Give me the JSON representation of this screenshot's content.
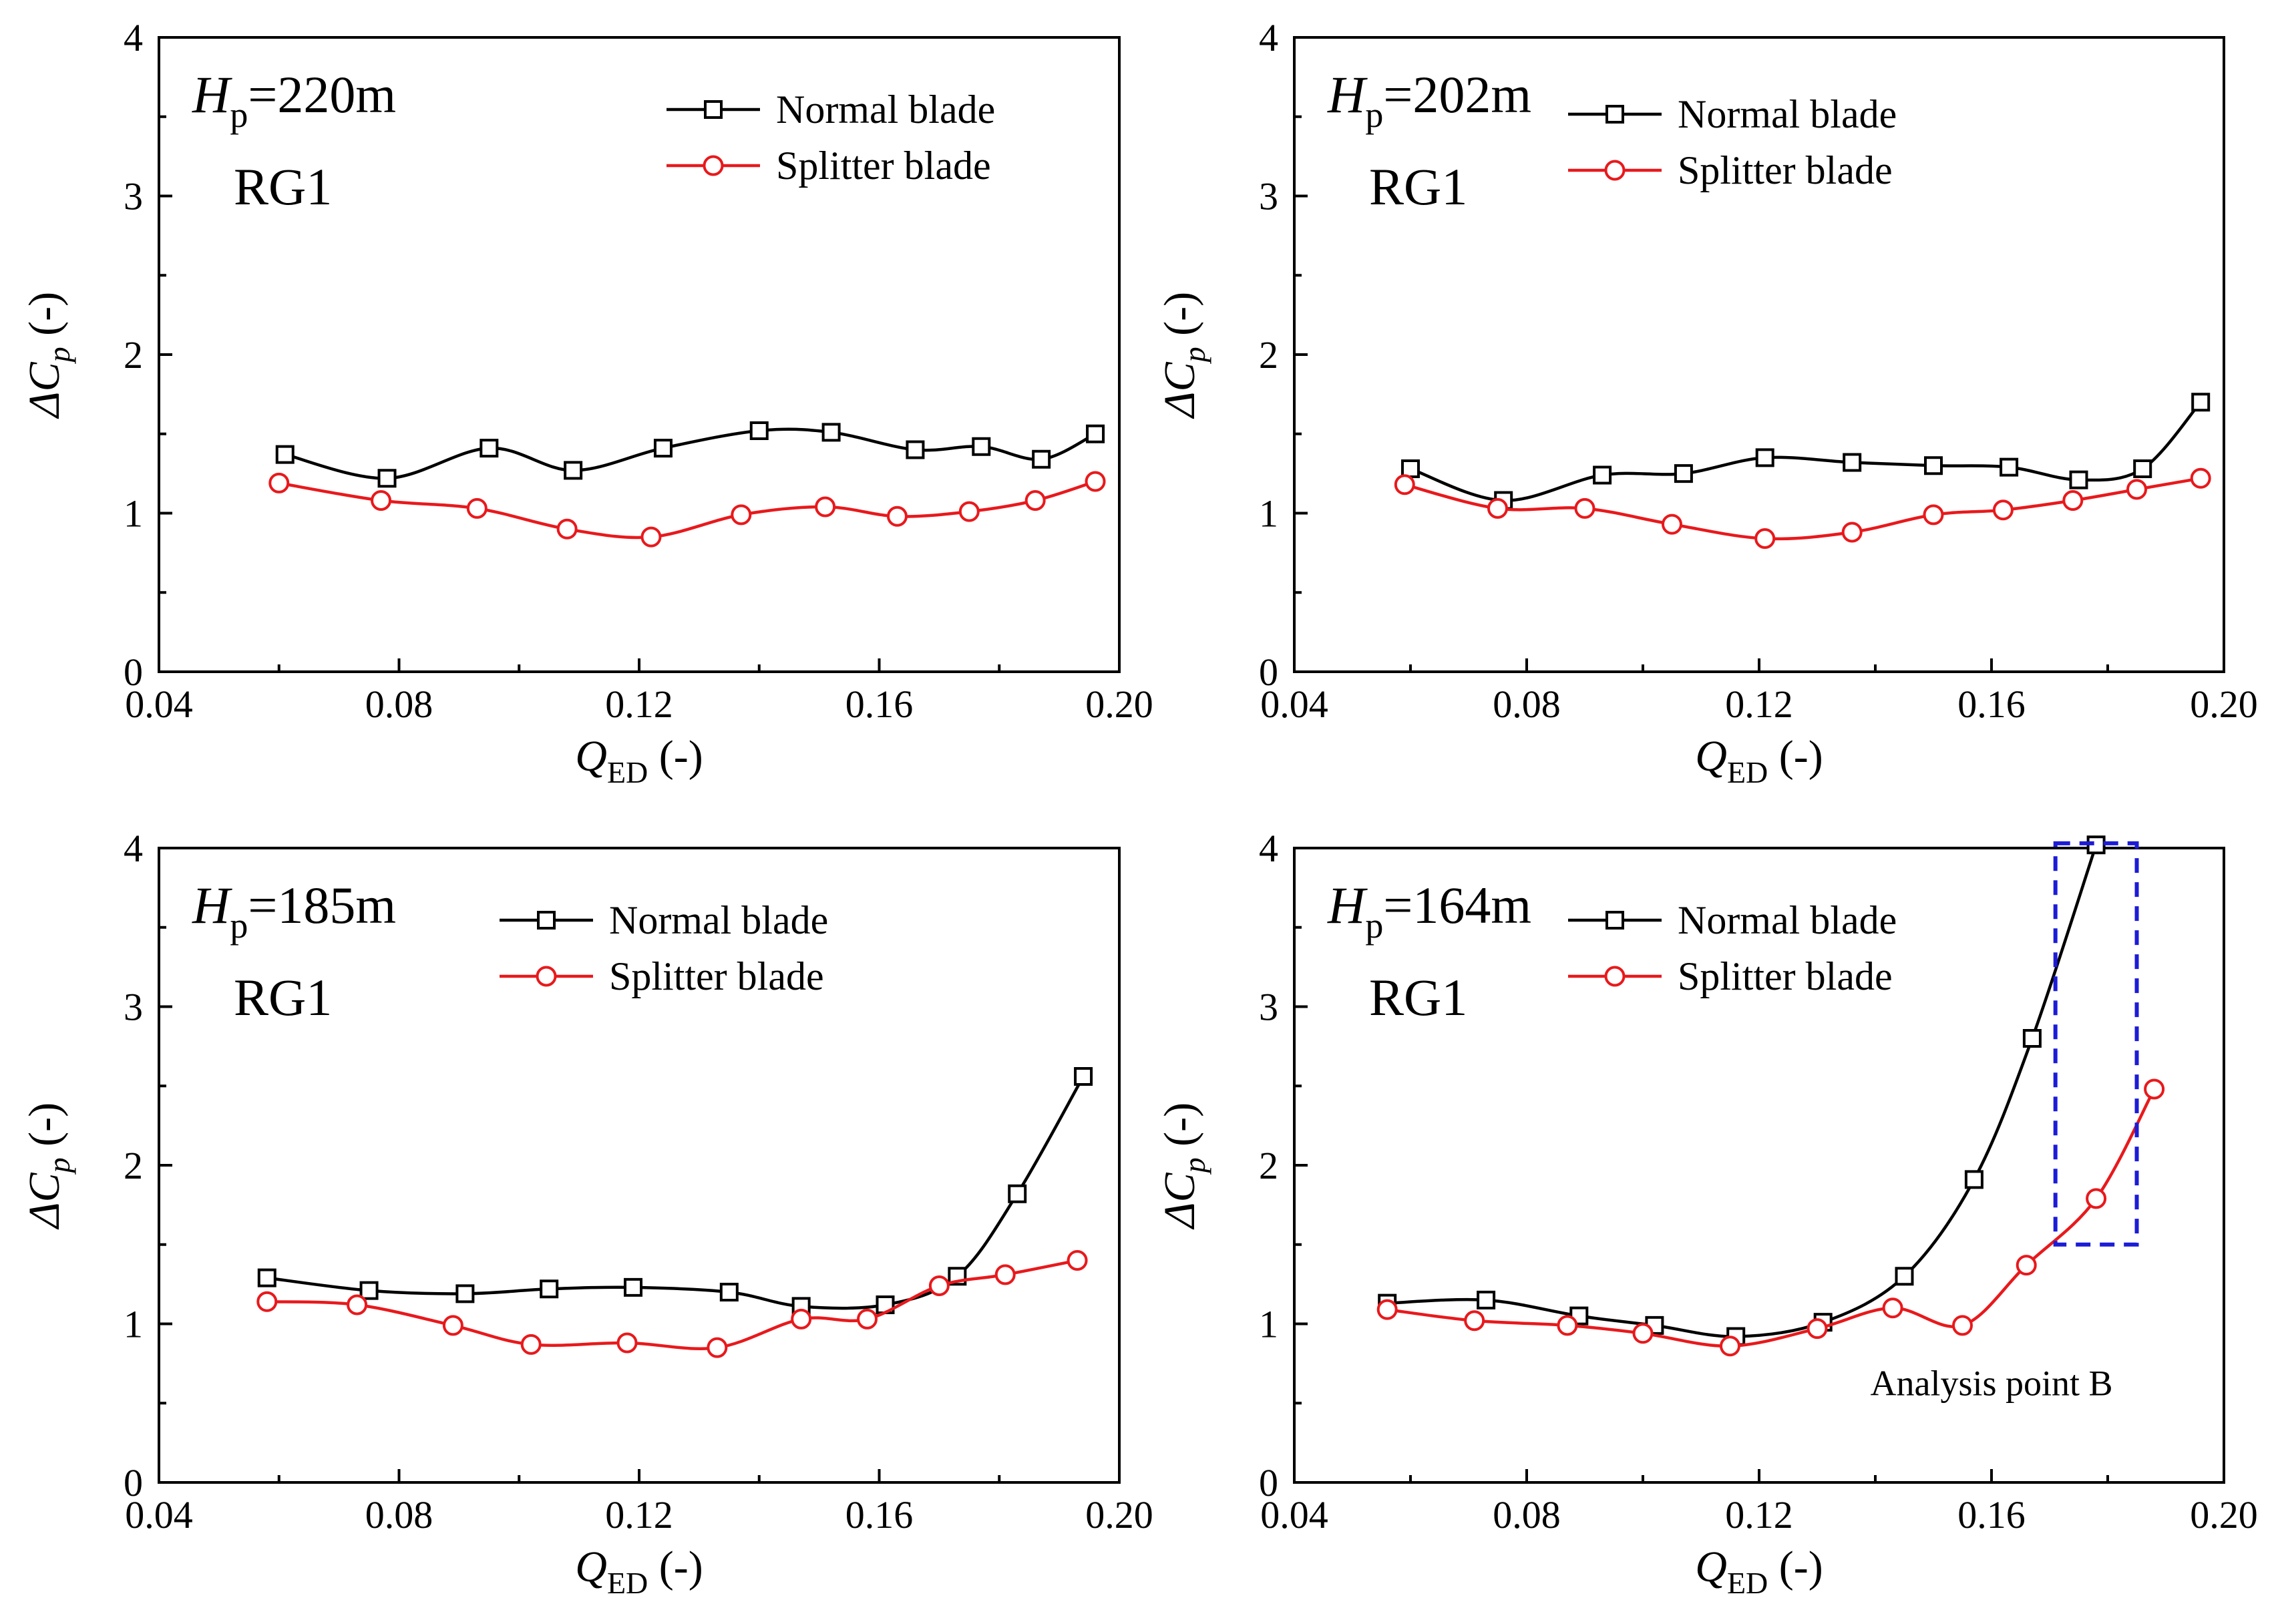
{
  "colors": {
    "normal": "#000000",
    "splitter": "#e8191c",
    "box": "#1c1cd6"
  },
  "chart_data": [
    {
      "type": "line",
      "head": "220m",
      "group": "RG1",
      "xlabel": "Q_ED (-)",
      "ylabel": "ΔC_p (-)",
      "xlim": [
        0.04,
        0.2
      ],
      "ylim": [
        0,
        4
      ],
      "xticks": [
        "0.04",
        "0.08",
        "0.12",
        "0.16",
        "0.20"
      ],
      "yticks": [
        "0",
        "1",
        "2",
        "3",
        "4"
      ],
      "series": [
        {
          "name": "Normal blade",
          "marker": "square",
          "x": [
            0.061,
            0.078,
            0.095,
            0.109,
            0.124,
            0.14,
            0.152,
            0.166,
            0.177,
            0.187,
            0.196
          ],
          "y": [
            1.37,
            1.22,
            1.41,
            1.27,
            1.41,
            1.52,
            1.51,
            1.4,
            1.42,
            1.34,
            1.5
          ]
        },
        {
          "name": "Splitter blade",
          "marker": "circle",
          "x": [
            0.06,
            0.077,
            0.093,
            0.108,
            0.122,
            0.137,
            0.151,
            0.163,
            0.175,
            0.186,
            0.196
          ],
          "y": [
            1.19,
            1.08,
            1.03,
            0.9,
            0.85,
            0.99,
            1.04,
            0.98,
            1.01,
            1.08,
            1.2
          ]
        }
      ]
    },
    {
      "type": "line",
      "head": "202m",
      "group": "RG1",
      "xlabel": "Q_ED (-)",
      "ylabel": "ΔC_p (-)",
      "xlim": [
        0.04,
        0.2
      ],
      "ylim": [
        0,
        4
      ],
      "xticks": [
        "0.04",
        "0.08",
        "0.12",
        "0.16",
        "0.20"
      ],
      "yticks": [
        "0",
        "1",
        "2",
        "3",
        "4"
      ],
      "series": [
        {
          "name": "Normal blade",
          "marker": "square",
          "x": [
            0.06,
            0.076,
            0.093,
            0.107,
            0.121,
            0.136,
            0.15,
            0.163,
            0.175,
            0.186,
            0.196
          ],
          "y": [
            1.28,
            1.08,
            1.24,
            1.25,
            1.35,
            1.32,
            1.3,
            1.29,
            1.21,
            1.28,
            1.7
          ]
        },
        {
          "name": "Splitter blade",
          "marker": "circle",
          "x": [
            0.059,
            0.075,
            0.09,
            0.105,
            0.121,
            0.136,
            0.15,
            0.162,
            0.174,
            0.185,
            0.196
          ],
          "y": [
            1.18,
            1.03,
            1.03,
            0.93,
            0.84,
            0.88,
            0.99,
            1.02,
            1.08,
            1.15,
            1.22
          ]
        }
      ]
    },
    {
      "type": "line",
      "head": "185m",
      "group": "RG1",
      "xlabel": "Q_ED (-)",
      "ylabel": "ΔC_p (-)",
      "xlim": [
        0.04,
        0.2
      ],
      "ylim": [
        0,
        4
      ],
      "xticks": [
        "0.04",
        "0.08",
        "0.12",
        "0.16",
        "0.20"
      ],
      "yticks": [
        "0",
        "1",
        "2",
        "3",
        "4"
      ],
      "series": [
        {
          "name": "Normal blade",
          "marker": "square",
          "x": [
            0.058,
            0.075,
            0.091,
            0.105,
            0.119,
            0.135,
            0.147,
            0.161,
            0.173,
            0.183,
            0.194
          ],
          "y": [
            1.29,
            1.21,
            1.19,
            1.22,
            1.23,
            1.2,
            1.11,
            1.12,
            1.3,
            1.82,
            2.56
          ]
        },
        {
          "name": "Splitter blade",
          "marker": "circle",
          "x": [
            0.058,
            0.073,
            0.089,
            0.102,
            0.118,
            0.133,
            0.147,
            0.158,
            0.17,
            0.181,
            0.193
          ],
          "y": [
            1.14,
            1.12,
            0.99,
            0.87,
            0.88,
            0.85,
            1.03,
            1.03,
            1.24,
            1.31,
            1.4
          ]
        }
      ]
    },
    {
      "type": "line",
      "head": "164m",
      "group": "RG1",
      "xlabel": "Q_ED (-)",
      "ylabel": "ΔC_p (-)",
      "xlim": [
        0.04,
        0.2
      ],
      "ylim": [
        0,
        4
      ],
      "xticks": [
        "0.04",
        "0.08",
        "0.12",
        "0.16",
        "0.20"
      ],
      "yticks": [
        "0",
        "1",
        "2",
        "3",
        "4"
      ],
      "annotation": "Analysis point B",
      "highlight_box": {
        "x": [
          0.171,
          0.185
        ],
        "y": [
          1.5,
          4.03
        ]
      },
      "series": [
        {
          "name": "Normal blade",
          "marker": "square",
          "x": [
            0.056,
            0.073,
            0.089,
            0.102,
            0.116,
            0.131,
            0.145,
            0.157,
            0.167,
            0.178
          ],
          "y": [
            1.13,
            1.15,
            1.05,
            0.99,
            0.92,
            1.01,
            1.3,
            1.91,
            2.8,
            4.02
          ]
        },
        {
          "name": "Splitter blade",
          "marker": "circle",
          "x": [
            0.056,
            0.071,
            0.087,
            0.1,
            0.115,
            0.13,
            0.143,
            0.155,
            0.166,
            0.178,
            0.188
          ],
          "y": [
            1.09,
            1.02,
            0.99,
            0.94,
            0.86,
            0.97,
            1.1,
            0.99,
            1.37,
            1.79,
            2.48
          ]
        }
      ]
    }
  ]
}
